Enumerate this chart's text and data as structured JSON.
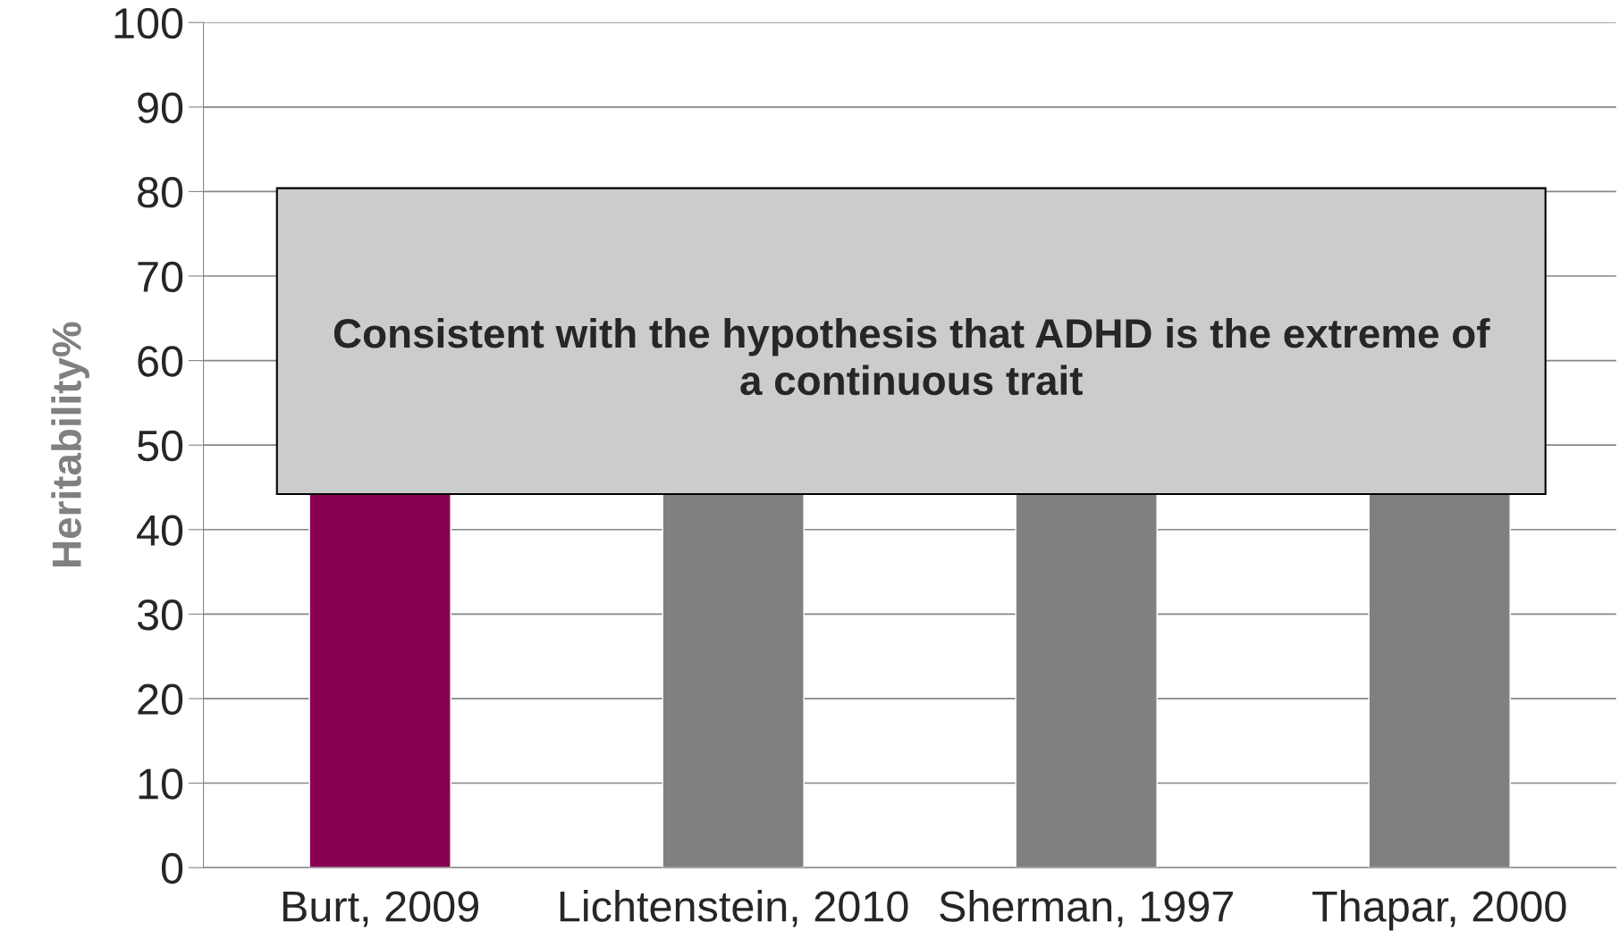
{
  "chart_data": {
    "type": "bar",
    "ylabel": "Heritability%",
    "categories": [
      "Burt, 2009",
      "Lichtenstein, 2010",
      "Sherman, 1997",
      "Thapar, 2000"
    ],
    "values": [
      44.2,
      44.2,
      44.2,
      44.2
    ],
    "colors": [
      "#880050",
      "#808080",
      "#808080",
      "#808080"
    ],
    "ylim": [
      0,
      100
    ],
    "yticks": [
      0,
      10,
      20,
      30,
      40,
      50,
      60,
      70,
      80,
      90,
      100
    ],
    "grid": "y",
    "annotations": [
      "Consistent with the hypothesis that ADHD is the extreme of\na continuous trait"
    ]
  }
}
